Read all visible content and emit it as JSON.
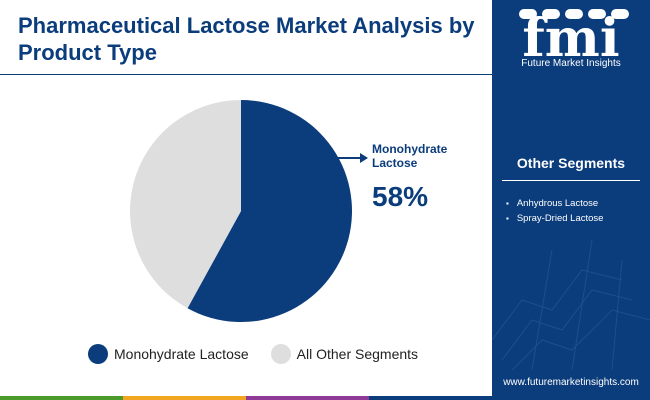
{
  "header": {
    "title": "Pharmaceutical Lactose Market Analysis by Product Type"
  },
  "chart_data": {
    "type": "pie",
    "categories": [
      "Monohydrate Lactose",
      "All Other Segments"
    ],
    "values": [
      58,
      42
    ],
    "colors": [
      "#0b3c7c",
      "#dedede"
    ],
    "callout": {
      "label_line1": "Monohydrate",
      "label_line2": "Lactose",
      "value_text": "58%"
    },
    "legend": {
      "placement": "bottom",
      "items": [
        {
          "label": "Monohydrate Lactose",
          "color": "#0b3c7c"
        },
        {
          "label": "All Other Segments",
          "color": "#dedede"
        }
      ]
    }
  },
  "sidebar": {
    "logo_text": "fmi",
    "logo_tagline": "Future Market Insights",
    "segments_title": "Other Segments",
    "segments": [
      "Anhydrous Lactose",
      "Spray-Dried Lactose"
    ],
    "url": "www.futuremarketinsights.com"
  },
  "theme": {
    "accent": "#0b3c7c",
    "bar_colors": [
      "#4c9a2a",
      "#f2a51f",
      "#8e3a96",
      "#0b3c7c"
    ]
  }
}
